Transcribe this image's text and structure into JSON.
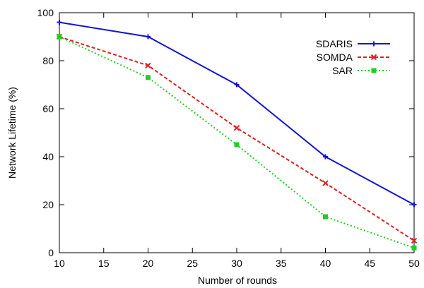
{
  "chart_data": {
    "type": "line",
    "title": "",
    "xlabel": "Number of rounds",
    "ylabel": "Network Lifetime (%)",
    "xlim": [
      10,
      50
    ],
    "ylim": [
      0,
      100
    ],
    "xticks": [
      10,
      15,
      20,
      25,
      30,
      35,
      40,
      45,
      50
    ],
    "yticks": [
      0,
      20,
      40,
      60,
      80,
      100
    ],
    "grid": false,
    "legend_position": "top-right",
    "x": [
      10,
      20,
      30,
      40,
      50
    ],
    "series": [
      {
        "name": "SDARIS",
        "values": [
          96,
          90,
          70,
          40,
          20
        ],
        "color": "#1414d2",
        "style": "solid",
        "marker": "plus"
      },
      {
        "name": "SOMDA",
        "values": [
          90,
          78,
          52,
          29,
          5
        ],
        "color": "#e02020",
        "style": "dashed",
        "marker": "cross"
      },
      {
        "name": "SAR",
        "values": [
          90,
          73,
          45,
          15,
          2
        ],
        "color": "#22cc22",
        "style": "dotted",
        "marker": "square"
      }
    ]
  }
}
